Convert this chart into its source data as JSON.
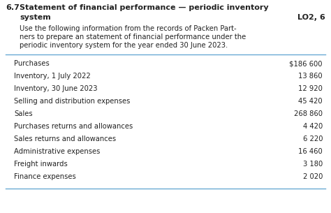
{
  "title_number": "6.7",
  "title_line1": "Statement of financial performance — periodic inventory",
  "title_line2_left": "system",
  "title_line2_right": "LO2, 6",
  "desc_lines": [
    "Use the following information from the records of Packen Part-",
    "ners to prepare an statement of financial performance under the",
    "periodic inventory system for the year ended 30 June 2023."
  ],
  "rows": [
    [
      "Purchases",
      "$186 600"
    ],
    [
      "Inventory, 1 July 2022",
      "13 860"
    ],
    [
      "Inventory, 30 June 2023",
      "12 920"
    ],
    [
      "Selling and distribution expenses",
      "45 420"
    ],
    [
      "Sales",
      "268 860"
    ],
    [
      "Purchases returns and allowances",
      "4 420"
    ],
    [
      "Sales returns and allowances",
      "6 220"
    ],
    [
      "Administrative expenses",
      "16 460"
    ],
    [
      "Freight inwards",
      "3 180"
    ],
    [
      "Finance expenses",
      "2 020"
    ]
  ],
  "bg_color": "#ffffff",
  "text_color": "#222222",
  "line_color": "#6aaad4",
  "font_size_title": 8.0,
  "font_size_body": 7.2,
  "font_size_table": 7.2,
  "dpi": 100,
  "fig_w": 4.74,
  "fig_h": 3.05
}
